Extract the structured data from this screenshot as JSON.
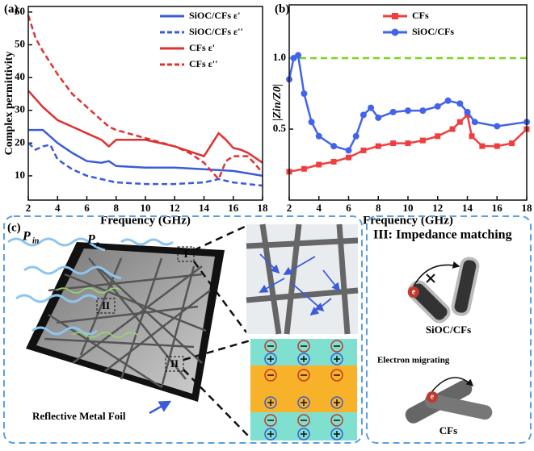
{
  "chart_data": [
    {
      "type": "line",
      "panel": "(a)",
      "xlabel": "Frequency (GHz)",
      "ylabel": "Complex permittivity",
      "xlim": [
        2,
        18
      ],
      "xticks": [
        2,
        4,
        6,
        8,
        10,
        12,
        14,
        16,
        18
      ],
      "ylim": [
        2.6,
        61.7
      ],
      "yticks": [
        10,
        20,
        30,
        40,
        50,
        60
      ],
      "series": [
        {
          "name": "SiOC/CFs ε'",
          "color": "#3b5bdb",
          "style": "solid",
          "x": [
            2,
            3,
            4,
            5,
            6,
            7,
            7.5,
            8,
            10,
            12,
            14,
            16,
            18
          ],
          "values": [
            24,
            24,
            20,
            17,
            14.5,
            14,
            14.5,
            13,
            12.5,
            12.5,
            12,
            11.5,
            10
          ]
        },
        {
          "name": "SiOC/CFs ε''",
          "color": "#3b5bdb",
          "style": "dashed",
          "x": [
            2,
            2.5,
            3,
            3.5,
            4,
            5,
            6,
            7,
            8,
            10,
            12,
            14,
            15,
            16,
            18
          ],
          "values": [
            20,
            18,
            19,
            19.5,
            15,
            12,
            10,
            9,
            8,
            7.5,
            7.5,
            8,
            9,
            8,
            7
          ]
        },
        {
          "name": "CFs ε'",
          "color": "#e03131",
          "style": "solid",
          "x": [
            2,
            3,
            4,
            5,
            6,
            7,
            7.5,
            8,
            10,
            12,
            14,
            15,
            15.5,
            16,
            16.5,
            17,
            18
          ],
          "values": [
            36,
            31,
            27,
            25,
            23,
            21,
            19,
            21,
            21,
            19,
            16,
            23,
            21,
            18.5,
            18,
            17,
            14
          ]
        },
        {
          "name": "CFs ε''",
          "color": "#e03131",
          "style": "dashed",
          "x": [
            2,
            2.5,
            3,
            4,
            5,
            6,
            7,
            7.5,
            8,
            10,
            12,
            13,
            14,
            15,
            15.5,
            16,
            17,
            18
          ],
          "values": [
            59,
            52,
            48,
            41,
            35,
            31,
            27,
            25,
            24,
            21.5,
            19,
            17,
            14,
            9,
            14.5,
            16,
            16,
            11
          ]
        }
      ]
    },
    {
      "type": "line",
      "panel": "(b)",
      "xlabel": "Frequency (GHz)",
      "ylabel": "|Zin/Z0|",
      "xlim": [
        2,
        18
      ],
      "xticks": [
        2,
        4,
        6,
        8,
        10,
        12,
        14,
        16,
        18
      ],
      "ylim": [
        0,
        1.375
      ],
      "yticks": [
        {
          "value": 0.5,
          "label": "0.5"
        },
        {
          "value": 1,
          "label": "1.0"
        }
      ],
      "reference_line": {
        "value": 1,
        "color": "#7ed321"
      },
      "series": [
        {
          "name": "CFs",
          "color": "#f03e3e",
          "style": "solid",
          "marker": "square",
          "x": [
            2,
            3,
            4,
            5,
            6,
            7,
            8,
            9,
            10,
            11,
            12,
            13,
            13.5,
            14,
            14.3,
            15,
            16,
            17,
            18
          ],
          "values": [
            0.2,
            0.22,
            0.25,
            0.27,
            0.3,
            0.35,
            0.38,
            0.4,
            0.4,
            0.42,
            0.45,
            0.5,
            0.55,
            0.6,
            0.45,
            0.38,
            0.38,
            0.4,
            0.5
          ]
        },
        {
          "name": "SiOC/CFs",
          "color": "#4263eb",
          "style": "solid",
          "marker": "circle",
          "x": [
            2,
            2.3,
            2.6,
            3,
            3.5,
            4,
            5,
            6,
            6.5,
            7,
            7.5,
            8,
            9,
            10,
            11,
            12,
            12.7,
            13.5,
            14,
            14.5,
            16,
            18
          ],
          "values": [
            0.85,
            1.0,
            1.02,
            0.75,
            0.55,
            0.45,
            0.38,
            0.35,
            0.45,
            0.6,
            0.65,
            0.58,
            0.62,
            0.63,
            0.63,
            0.66,
            0.7,
            0.68,
            0.62,
            0.55,
            0.52,
            0.55
          ]
        }
      ]
    }
  ],
  "diagram": {
    "label": "(c)",
    "p_in": {
      "main": "P",
      "sub": "in"
    },
    "p_r": {
      "main": "P",
      "sub": "r"
    },
    "region_1": "I",
    "region_2a": "II",
    "region_2b": "II",
    "foil": "Reflective Metal Foil",
    "impedance": {
      "title": "III: Impedance matching",
      "top": "SiOC/CFs",
      "electron": "e",
      "electron2": "e",
      "migrating": "Electron migrating",
      "bottom": "CFs"
    }
  }
}
